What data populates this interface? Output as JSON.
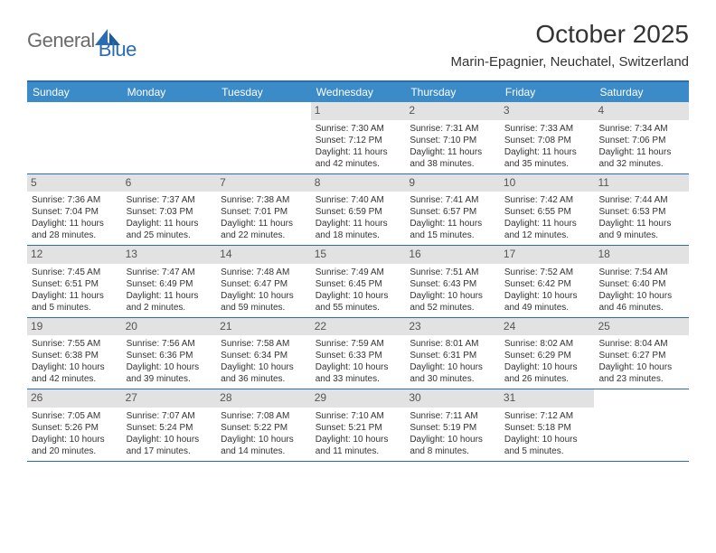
{
  "logo": {
    "text1": "General",
    "text2": "Blue"
  },
  "title": "October 2025",
  "location": "Marin-Epagnier, Neuchatel, Switzerland",
  "colors": {
    "header_bg": "#3b8bc9",
    "border": "#2a6db5",
    "daynum_bg": "#e2e2e2",
    "text": "#333333",
    "logo_gray": "#6b6b6b",
    "logo_blue": "#2a6db5"
  },
  "weekdays": [
    "Sunday",
    "Monday",
    "Tuesday",
    "Wednesday",
    "Thursday",
    "Friday",
    "Saturday"
  ],
  "weeks": [
    [
      {
        "n": "",
        "empty": true
      },
      {
        "n": "",
        "empty": true
      },
      {
        "n": "",
        "empty": true
      },
      {
        "n": "1",
        "sunrise": "Sunrise: 7:30 AM",
        "sunset": "Sunset: 7:12 PM",
        "dl1": "Daylight: 11 hours",
        "dl2": "and 42 minutes."
      },
      {
        "n": "2",
        "sunrise": "Sunrise: 7:31 AM",
        "sunset": "Sunset: 7:10 PM",
        "dl1": "Daylight: 11 hours",
        "dl2": "and 38 minutes."
      },
      {
        "n": "3",
        "sunrise": "Sunrise: 7:33 AM",
        "sunset": "Sunset: 7:08 PM",
        "dl1": "Daylight: 11 hours",
        "dl2": "and 35 minutes."
      },
      {
        "n": "4",
        "sunrise": "Sunrise: 7:34 AM",
        "sunset": "Sunset: 7:06 PM",
        "dl1": "Daylight: 11 hours",
        "dl2": "and 32 minutes."
      }
    ],
    [
      {
        "n": "5",
        "sunrise": "Sunrise: 7:36 AM",
        "sunset": "Sunset: 7:04 PM",
        "dl1": "Daylight: 11 hours",
        "dl2": "and 28 minutes."
      },
      {
        "n": "6",
        "sunrise": "Sunrise: 7:37 AM",
        "sunset": "Sunset: 7:03 PM",
        "dl1": "Daylight: 11 hours",
        "dl2": "and 25 minutes."
      },
      {
        "n": "7",
        "sunrise": "Sunrise: 7:38 AM",
        "sunset": "Sunset: 7:01 PM",
        "dl1": "Daylight: 11 hours",
        "dl2": "and 22 minutes."
      },
      {
        "n": "8",
        "sunrise": "Sunrise: 7:40 AM",
        "sunset": "Sunset: 6:59 PM",
        "dl1": "Daylight: 11 hours",
        "dl2": "and 18 minutes."
      },
      {
        "n": "9",
        "sunrise": "Sunrise: 7:41 AM",
        "sunset": "Sunset: 6:57 PM",
        "dl1": "Daylight: 11 hours",
        "dl2": "and 15 minutes."
      },
      {
        "n": "10",
        "sunrise": "Sunrise: 7:42 AM",
        "sunset": "Sunset: 6:55 PM",
        "dl1": "Daylight: 11 hours",
        "dl2": "and 12 minutes."
      },
      {
        "n": "11",
        "sunrise": "Sunrise: 7:44 AM",
        "sunset": "Sunset: 6:53 PM",
        "dl1": "Daylight: 11 hours",
        "dl2": "and 9 minutes."
      }
    ],
    [
      {
        "n": "12",
        "sunrise": "Sunrise: 7:45 AM",
        "sunset": "Sunset: 6:51 PM",
        "dl1": "Daylight: 11 hours",
        "dl2": "and 5 minutes."
      },
      {
        "n": "13",
        "sunrise": "Sunrise: 7:47 AM",
        "sunset": "Sunset: 6:49 PM",
        "dl1": "Daylight: 11 hours",
        "dl2": "and 2 minutes."
      },
      {
        "n": "14",
        "sunrise": "Sunrise: 7:48 AM",
        "sunset": "Sunset: 6:47 PM",
        "dl1": "Daylight: 10 hours",
        "dl2": "and 59 minutes."
      },
      {
        "n": "15",
        "sunrise": "Sunrise: 7:49 AM",
        "sunset": "Sunset: 6:45 PM",
        "dl1": "Daylight: 10 hours",
        "dl2": "and 55 minutes."
      },
      {
        "n": "16",
        "sunrise": "Sunrise: 7:51 AM",
        "sunset": "Sunset: 6:43 PM",
        "dl1": "Daylight: 10 hours",
        "dl2": "and 52 minutes."
      },
      {
        "n": "17",
        "sunrise": "Sunrise: 7:52 AM",
        "sunset": "Sunset: 6:42 PM",
        "dl1": "Daylight: 10 hours",
        "dl2": "and 49 minutes."
      },
      {
        "n": "18",
        "sunrise": "Sunrise: 7:54 AM",
        "sunset": "Sunset: 6:40 PM",
        "dl1": "Daylight: 10 hours",
        "dl2": "and 46 minutes."
      }
    ],
    [
      {
        "n": "19",
        "sunrise": "Sunrise: 7:55 AM",
        "sunset": "Sunset: 6:38 PM",
        "dl1": "Daylight: 10 hours",
        "dl2": "and 42 minutes."
      },
      {
        "n": "20",
        "sunrise": "Sunrise: 7:56 AM",
        "sunset": "Sunset: 6:36 PM",
        "dl1": "Daylight: 10 hours",
        "dl2": "and 39 minutes."
      },
      {
        "n": "21",
        "sunrise": "Sunrise: 7:58 AM",
        "sunset": "Sunset: 6:34 PM",
        "dl1": "Daylight: 10 hours",
        "dl2": "and 36 minutes."
      },
      {
        "n": "22",
        "sunrise": "Sunrise: 7:59 AM",
        "sunset": "Sunset: 6:33 PM",
        "dl1": "Daylight: 10 hours",
        "dl2": "and 33 minutes."
      },
      {
        "n": "23",
        "sunrise": "Sunrise: 8:01 AM",
        "sunset": "Sunset: 6:31 PM",
        "dl1": "Daylight: 10 hours",
        "dl2": "and 30 minutes."
      },
      {
        "n": "24",
        "sunrise": "Sunrise: 8:02 AM",
        "sunset": "Sunset: 6:29 PM",
        "dl1": "Daylight: 10 hours",
        "dl2": "and 26 minutes."
      },
      {
        "n": "25",
        "sunrise": "Sunrise: 8:04 AM",
        "sunset": "Sunset: 6:27 PM",
        "dl1": "Daylight: 10 hours",
        "dl2": "and 23 minutes."
      }
    ],
    [
      {
        "n": "26",
        "sunrise": "Sunrise: 7:05 AM",
        "sunset": "Sunset: 5:26 PM",
        "dl1": "Daylight: 10 hours",
        "dl2": "and 20 minutes."
      },
      {
        "n": "27",
        "sunrise": "Sunrise: 7:07 AM",
        "sunset": "Sunset: 5:24 PM",
        "dl1": "Daylight: 10 hours",
        "dl2": "and 17 minutes."
      },
      {
        "n": "28",
        "sunrise": "Sunrise: 7:08 AM",
        "sunset": "Sunset: 5:22 PM",
        "dl1": "Daylight: 10 hours",
        "dl2": "and 14 minutes."
      },
      {
        "n": "29",
        "sunrise": "Sunrise: 7:10 AM",
        "sunset": "Sunset: 5:21 PM",
        "dl1": "Daylight: 10 hours",
        "dl2": "and 11 minutes."
      },
      {
        "n": "30",
        "sunrise": "Sunrise: 7:11 AM",
        "sunset": "Sunset: 5:19 PM",
        "dl1": "Daylight: 10 hours",
        "dl2": "and 8 minutes."
      },
      {
        "n": "31",
        "sunrise": "Sunrise: 7:12 AM",
        "sunset": "Sunset: 5:18 PM",
        "dl1": "Daylight: 10 hours",
        "dl2": "and 5 minutes."
      },
      {
        "n": "",
        "empty": true
      }
    ]
  ]
}
